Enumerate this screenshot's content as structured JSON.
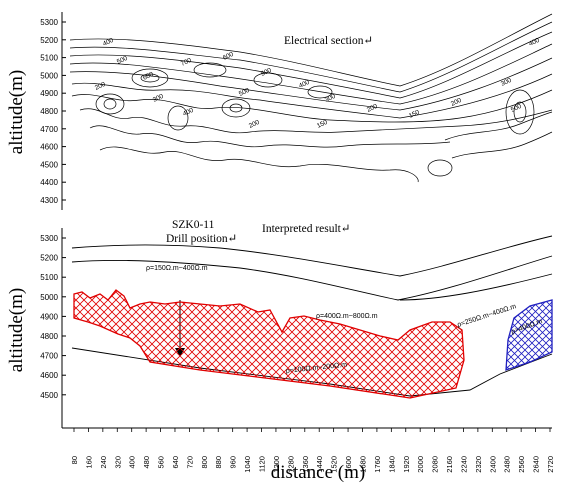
{
  "top_panel": {
    "title": "Electrical section↵",
    "y_axis_label": "altitude(m)",
    "y_ticks": [
      "5300",
      "5200",
      "5100",
      "5000",
      "4900",
      "4800",
      "4700",
      "4600",
      "4500",
      "4400",
      "4300"
    ],
    "contour_labels": [
      "400",
      "500",
      "600",
      "700",
      "600",
      "500",
      "400",
      "300",
      "200",
      "150",
      "200",
      "300",
      "400",
      "500",
      "200",
      "150",
      "200",
      "300",
      "400",
      "500"
    ]
  },
  "bottom_panel": {
    "title": "Interpreted result↵",
    "drill_label_1": "SZK0-11",
    "drill_label_2": "Drill position↵",
    "y_axis_label": "altitude(m)",
    "y_ticks": [
      "5300",
      "5200",
      "5100",
      "5000",
      "4900",
      "4800",
      "4700",
      "4600",
      "4500"
    ],
    "zones": {
      "zone_150_400": "ρ=150Ω.m~400Ω.m",
      "zone_400_800": "ρ=400Ω.m~800Ω.m",
      "zone_250_400": "ρ=250Ω.m~400Ω.m",
      "zone_gt400": "ρ>400Ω.m",
      "zone_100_200": "ρ=100Ω.m~200Ω.m"
    },
    "colors": {
      "low_resistivity": "#e00000",
      "high_resistivity": "#2020c0"
    }
  },
  "x_axis": {
    "label": "distance (m)",
    "ticks": [
      "80",
      "160",
      "240",
      "320",
      "400",
      "480",
      "560",
      "640",
      "720",
      "800",
      "880",
      "960",
      "1040",
      "1120",
      "1200",
      "1280",
      "1360",
      "1440",
      "1520",
      "1600",
      "1680",
      "1760",
      "1840",
      "1920",
      "2000",
      "2080",
      "2160",
      "2240",
      "2320",
      "2400",
      "2480",
      "2560",
      "2640",
      "2720"
    ]
  }
}
